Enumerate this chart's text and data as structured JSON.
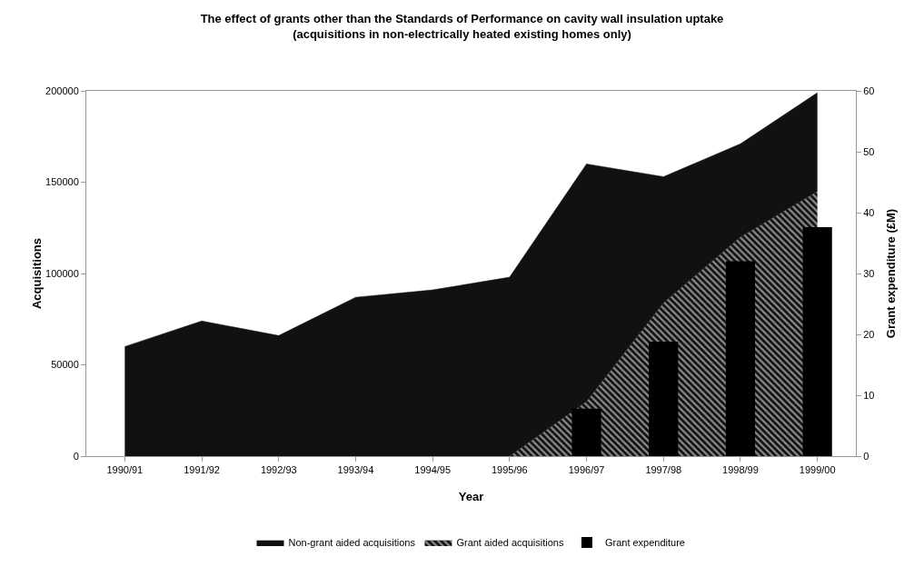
{
  "chart_data": {
    "type": "area",
    "title": "The effect of grants other than the Standards of Performance on cavity wall insulation uptake\n(acquisitions in non-electrically heated existing homes only)",
    "xlabel": "Year",
    "ylabel": "Acquisitions",
    "y2label": "Grant expenditure (£M)",
    "categories": [
      "1990/91",
      "1991/92",
      "1992/93",
      "1993/94",
      "1994/95",
      "1995/96",
      "1996/97",
      "1997/98",
      "1998/99",
      "1999/00"
    ],
    "stacked": true,
    "series": [
      {
        "name": "Grant aided acquisitions",
        "color": "#8c8c8c",
        "values": [
          0,
          0,
          0,
          0,
          0,
          0,
          30000,
          84000,
          120000,
          145000
        ]
      },
      {
        "name": "Non-grant aided acquisitions",
        "color": "#111111",
        "values": [
          60000,
          74000,
          66000,
          87000,
          91000,
          98000,
          130000,
          69000,
          51000,
          54000
        ]
      },
      {
        "name": "Grant expenditure",
        "type": "bar",
        "axis": "y2",
        "color": "#000000",
        "values": [
          null,
          null,
          null,
          null,
          null,
          null,
          7.8,
          18.8,
          32,
          37.6
        ]
      }
    ],
    "ylim": [
      0,
      200000
    ],
    "yticks": [
      0,
      50000,
      100000,
      150000,
      200000
    ],
    "y2lim": [
      0,
      60
    ],
    "y2ticks": [
      0,
      10,
      20,
      30,
      40,
      50,
      60
    ],
    "grid": false,
    "legend": "bottom"
  }
}
